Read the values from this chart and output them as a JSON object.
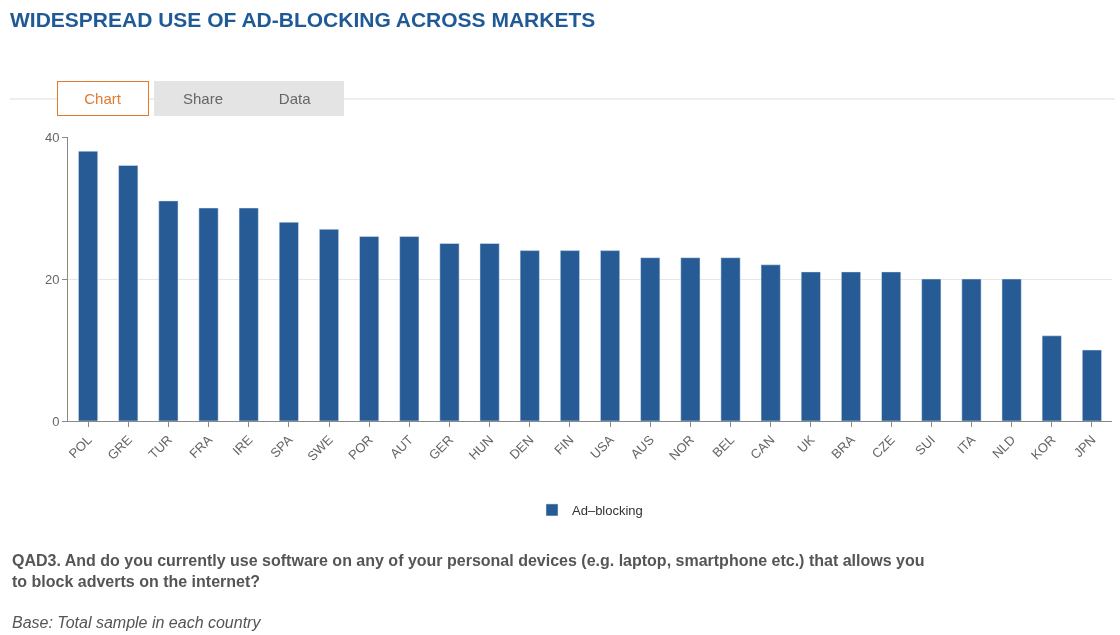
{
  "chart_data": {
    "type": "bar",
    "title": "WIDESPREAD USE OF AD-BLOCKING ACROSS MARKETS",
    "categories": [
      "POL",
      "GRE",
      "TUR",
      "FRA",
      "IRE",
      "SPA",
      "SWE",
      "POR",
      "AUT",
      "GER",
      "HUN",
      "DEN",
      "FIN",
      "USA",
      "AUS",
      "NOR",
      "BEL",
      "CAN",
      "UK",
      "BRA",
      "CZE",
      "SUI",
      "ITA",
      "NLD",
      "KOR",
      "JPN"
    ],
    "series": [
      {
        "name": "Ad–blocking",
        "color": "#265b95",
        "values": [
          38,
          36,
          31,
          30,
          30,
          28,
          27,
          26,
          26,
          25,
          25,
          24,
          24,
          24,
          23,
          23,
          23,
          22,
          21,
          21,
          21,
          20,
          20,
          20,
          12,
          10
        ]
      }
    ],
    "ylim": [
      0,
      40
    ],
    "yticks": [
      0,
      20,
      40
    ],
    "grid": "y",
    "legend": "bottom",
    "annotations": [
      "Chart",
      "Share",
      "Data",
      "QAD3. And do you currently use software on any of your personal devices (e.g. laptop, smartphone etc.) that allows you to block adverts on the internet?",
      "Base: Total sample in each country"
    ]
  }
}
